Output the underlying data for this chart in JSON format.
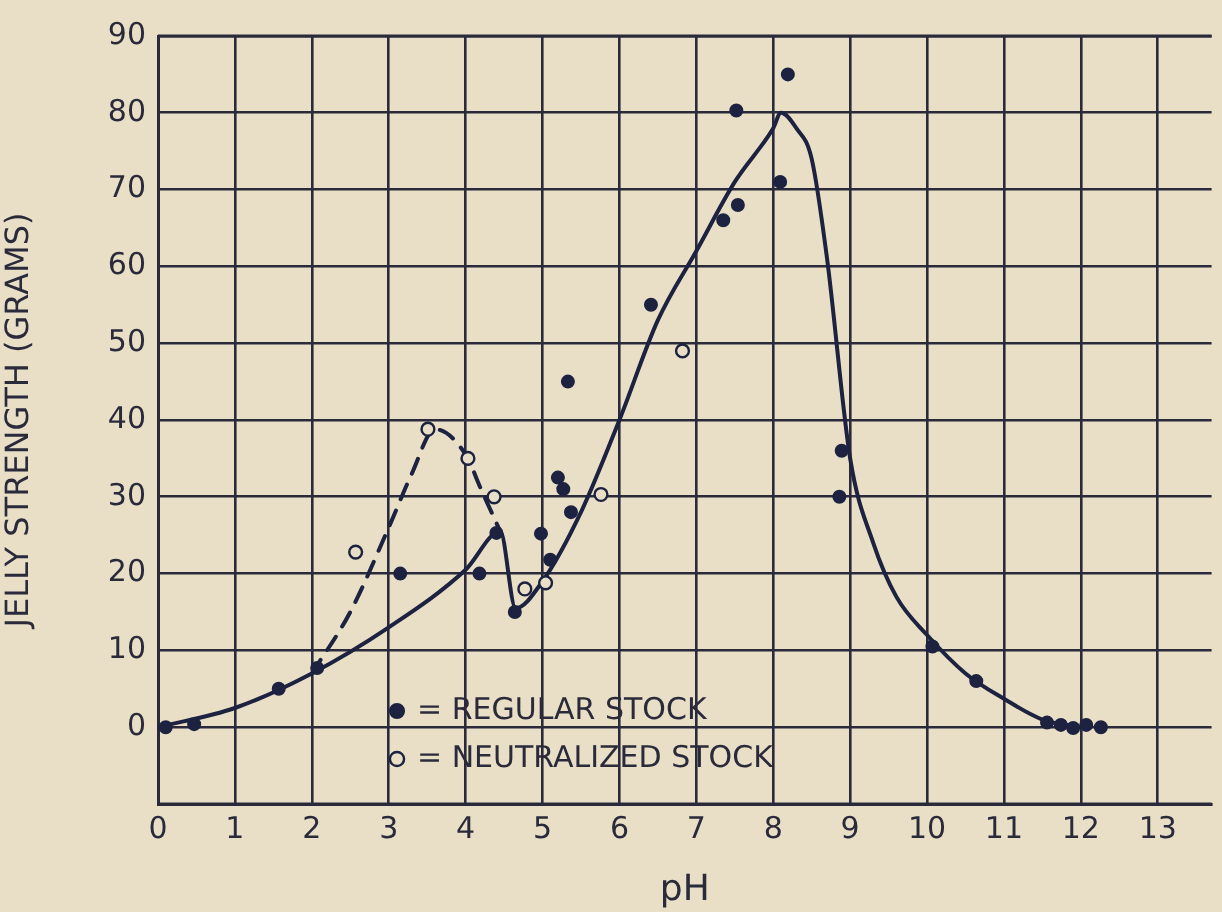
{
  "chart_data": {
    "type": "scatter",
    "xlabel": "pH",
    "ylabel": "JELLY STRENGTH (GRAMS)",
    "xlim": [
      0,
      13.7
    ],
    "xticks": [
      0,
      1,
      2,
      3,
      4,
      5,
      6,
      7,
      8,
      9,
      10,
      11,
      12,
      13
    ],
    "ylim": [
      -10,
      90
    ],
    "yticks": [
      0,
      10,
      20,
      30,
      40,
      50,
      60,
      70,
      80,
      90
    ],
    "grid": true,
    "legend": "bottom",
    "marker": "circle",
    "series": [
      {
        "name": "= REGULAR STOCK",
        "type": "scatter",
        "color": "#1c2240",
        "x": [
          0.1,
          0.47,
          1.57,
          2.07,
          3.15,
          4.18,
          4.4,
          4.64,
          4.98,
          5.1,
          5.2,
          5.27,
          5.33,
          5.37,
          6.41,
          7.35,
          7.52,
          7.54,
          8.09,
          8.19,
          8.86,
          8.89,
          10.07,
          10.64,
          11.56,
          11.74,
          11.9,
          12.07,
          12.26
        ],
        "values": [
          0,
          0.4,
          5,
          7.7,
          20,
          20,
          25.3,
          15,
          25.2,
          21.8,
          32.5,
          31,
          45,
          28,
          55,
          66,
          80.3,
          68,
          71,
          85,
          30,
          36,
          10.5,
          6,
          0.6,
          0.3,
          -0.1,
          0.3,
          0
        ]
      },
      {
        "name": "= NEUTRALIZED STOCK",
        "type": "scatter",
        "color": "#1c2240",
        "marker": "circle-open",
        "x": [
          2.57,
          3.51,
          4.03,
          4.37,
          4.77,
          5.04,
          5.76,
          6.82
        ],
        "values": [
          22.8,
          38.8,
          35,
          30,
          18,
          18.8,
          30.3,
          49
        ]
      },
      {
        "type": "line",
        "color": "#1c2240",
        "marker": "none",
        "line_style": "solid",
        "x": [
          0,
          1,
          2,
          3,
          4,
          4.45,
          4.65,
          5,
          5.5,
          6,
          6.5,
          7,
          7.5,
          8,
          8.1,
          8.3,
          8.5,
          8.7,
          9,
          9.3,
          9.6,
          10,
          10.5,
          11,
          11.5,
          12
        ],
        "values": [
          0,
          2.5,
          7,
          13,
          20.5,
          25.5,
          15.5,
          19,
          28,
          40,
          53,
          62,
          71,
          78,
          80,
          78,
          74,
          61,
          35,
          24,
          17,
          12,
          7,
          3.7,
          1,
          0
        ]
      },
      {
        "type": "line",
        "color": "#1c2240",
        "marker": "none",
        "line_style": "dashed",
        "x": [
          2,
          2.5,
          3,
          3.3,
          3.6,
          4,
          4.2,
          4.45
        ],
        "values": [
          7,
          15,
          26,
          33,
          38.8,
          35.5,
          31,
          25.5
        ]
      }
    ]
  }
}
